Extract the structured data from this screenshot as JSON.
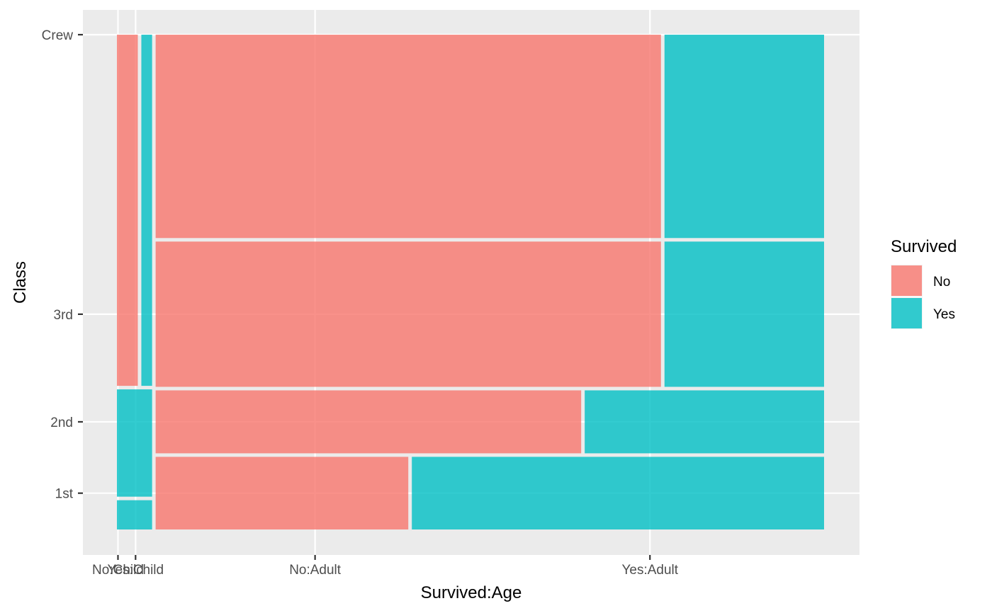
{
  "chart_data": {
    "type": "mosaic",
    "xlabel": "Survived:Age",
    "ylabel": "Class",
    "x_ticks": [
      "No:Child",
      "Yes:Child",
      "No:Adult",
      "Yes:Adult"
    ],
    "y_ticks": [
      "1st",
      "2nd",
      "3rd",
      "Crew"
    ],
    "legend": {
      "title": "Survived",
      "placement": "right",
      "entries": [
        {
          "label": "No",
          "color": "#F8766D"
        },
        {
          "label": "Yes",
          "color": "#00BFC4"
        }
      ]
    },
    "grid": true,
    "columns": [
      {
        "age": "Child",
        "share": 0.05,
        "classes": [
          {
            "class": "1st",
            "share": 0.06,
            "no_share": 0.0
          },
          {
            "class": "2nd",
            "share": 0.22,
            "no_share": 0.0
          },
          {
            "class": "3rd",
            "share": 0.72,
            "no_share": 0.66
          },
          {
            "class": "Crew",
            "share": 0.0,
            "no_share": 0.0
          }
        ]
      },
      {
        "age": "Adult",
        "share": 0.95,
        "classes": [
          {
            "class": "1st",
            "share": 0.15,
            "no_share": 0.38
          },
          {
            "class": "2nd",
            "share": 0.13,
            "no_share": 0.64
          },
          {
            "class": "3rd",
            "share": 0.3,
            "no_share": 0.76
          },
          {
            "class": "Crew",
            "share": 0.42,
            "no_share": 0.76
          }
        ]
      }
    ]
  }
}
